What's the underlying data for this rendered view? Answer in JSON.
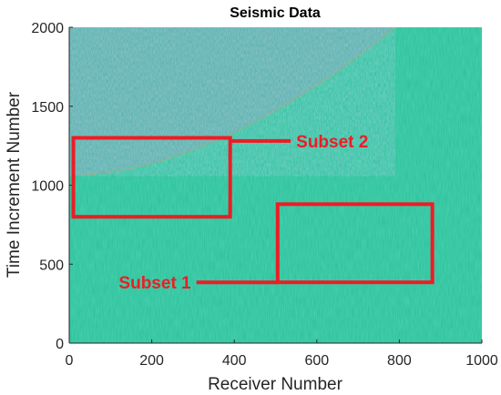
{
  "chart_data": {
    "type": "heatmap",
    "title": "Seismic Data",
    "xlabel": "Receiver Number",
    "ylabel": "Time Increment Number",
    "xlim": [
      0,
      1000
    ],
    "ylim": [
      0,
      2000
    ],
    "xticks": [
      "0",
      "200",
      "400",
      "600",
      "800",
      "1000"
    ],
    "yticks": [
      "0",
      "500",
      "1000",
      "1500",
      "2000"
    ],
    "grid": false,
    "colors": {
      "background_field": "#2fc39d",
      "noise_region": "#7aa8c6",
      "annotation": "#ee1c24",
      "axis": "#262626"
    },
    "subset_boxes": [
      {
        "name": "Subset 2",
        "x_range": [
          10,
          390
        ],
        "y_range": [
          800,
          1300
        ],
        "label_at": [
          550,
          1280
        ]
      },
      {
        "name": "Subset 1",
        "x_range": [
          505,
          880
        ],
        "y_range": [
          385,
          880
        ],
        "label_at": [
          295,
          385
        ]
      }
    ]
  }
}
